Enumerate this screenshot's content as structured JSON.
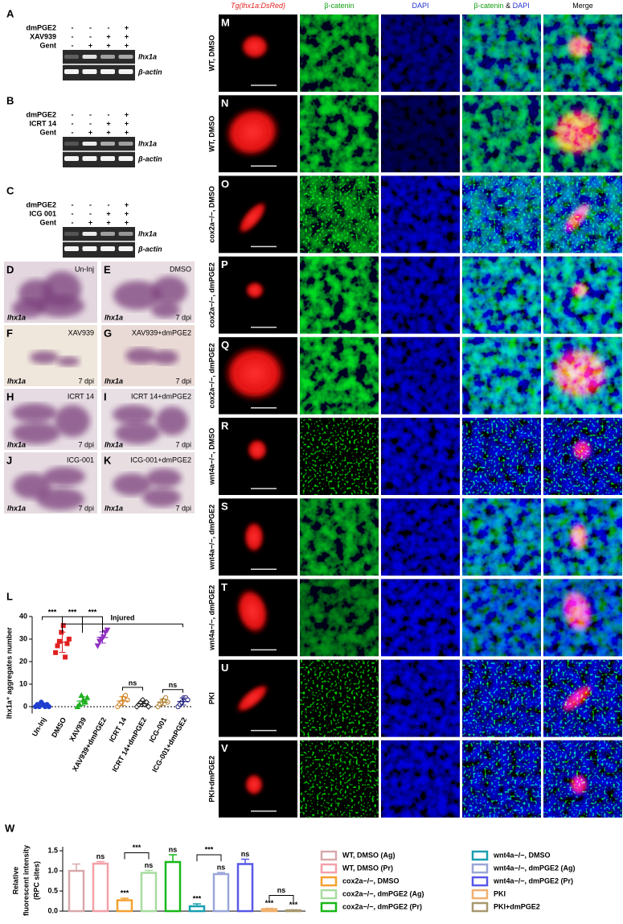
{
  "gels": [
    {
      "letter": "A",
      "rows": [
        {
          "name": "dmPGE2",
          "signs": [
            "-",
            "-",
            "-",
            "+"
          ]
        },
        {
          "name": "XAV939",
          "signs": [
            "-",
            "-",
            "+",
            "+"
          ]
        },
        {
          "name": "Gent",
          "signs": [
            "-",
            "+",
            "+",
            "+"
          ]
        }
      ],
      "bands": [
        "lhx1a",
        "β-actin"
      ]
    },
    {
      "letter": "B",
      "rows": [
        {
          "name": "dmPGE2",
          "signs": [
            "-",
            "-",
            "-",
            "+"
          ]
        },
        {
          "name": "ICRT 14",
          "signs": [
            "-",
            "-",
            "+",
            "+"
          ]
        },
        {
          "name": "Gent",
          "signs": [
            "-",
            "+",
            "+",
            "+"
          ]
        }
      ],
      "bands": [
        "lhx1a",
        "β-actin"
      ]
    },
    {
      "letter": "C",
      "rows": [
        {
          "name": "dmPGE2",
          "signs": [
            "-",
            "-",
            "-",
            "+"
          ]
        },
        {
          "name": "ICG 001",
          "signs": [
            "-",
            "-",
            "+",
            "+"
          ]
        },
        {
          "name": "Gent",
          "signs": [
            "-",
            "+",
            "+",
            "+"
          ]
        }
      ],
      "bands": [
        "lhx1a",
        "β-actin"
      ]
    }
  ],
  "ish": [
    {
      "letter": "D",
      "label": "Un-Inj",
      "gene": "lhx1a"
    },
    {
      "letter": "E",
      "label": "DMSO",
      "gene": "lhx1a",
      "time": "7 dpi"
    },
    {
      "letter": "F",
      "label": "XAV939",
      "gene": "lhx1a",
      "time": "7 dpi"
    },
    {
      "letter": "G",
      "label": "XAV939+dmPGE2",
      "gene": "lhx1a",
      "time": "7 dpi"
    },
    {
      "letter": "H",
      "label": "ICRT 14",
      "gene": "lhx1a",
      "time": "7 dpi"
    },
    {
      "letter": "I",
      "label": "ICRT 14+dmPGE2",
      "gene": "lhx1a",
      "time": "7 dpi"
    },
    {
      "letter": "J",
      "label": "ICG-001",
      "gene": "lhx1a",
      "time": "7 dpi"
    },
    {
      "letter": "K",
      "label": "ICG-001+dmPGE2",
      "gene": "lhx1a",
      "time": "7 dpi"
    }
  ],
  "imaging": {
    "columns": [
      [
        {
          "text": "Tg(lhx1a:DsRed)",
          "color": "#e02020"
        }
      ],
      [
        {
          "text": "β-catenin",
          "color": "#10a010"
        }
      ],
      [
        {
          "text": "DAPI",
          "color": "#2030d0"
        }
      ],
      [
        {
          "text": "β-catenin",
          "color": "#10a010"
        },
        {
          "text": "&",
          "color": "#000000"
        },
        {
          "text": "DAPI",
          "color": "#2030d0"
        }
      ],
      [
        {
          "text": "Merge",
          "color": "#000000"
        }
      ]
    ],
    "rows": [
      {
        "letter": "M",
        "label": "WT, DMSO"
      },
      {
        "letter": "N",
        "label": "WT, DMSO"
      },
      {
        "letter": "O",
        "label": "cox2a−/−, DMSO"
      },
      {
        "letter": "P",
        "label": "cox2a−/−, dmPGE2"
      },
      {
        "letter": "Q",
        "label": "cox2a−/−, dmPGE2"
      },
      {
        "letter": "R",
        "label": "wnt4a−/−, DMSO"
      },
      {
        "letter": "S",
        "label": "wnt4a−/−, dmPGE2"
      },
      {
        "letter": "T",
        "label": "wnt4a−/−, dmPGE2"
      },
      {
        "letter": "U",
        "label": "PKI"
      },
      {
        "letter": "V",
        "label": "PKI+dmPGE2"
      }
    ]
  },
  "chart_data": [
    {
      "letter": "L",
      "type": "dot",
      "ylabel": "lhx1a⁺ aggregates number",
      "categories": [
        "Un-Inj",
        "DMSO",
        "XAV939",
        "XAV939+dmPGE2",
        "ICRT 14",
        "ICRT 14+dmPGE2",
        "ICG-001",
        "ICG-001+dmPGE2"
      ],
      "points": [
        [
          0,
          1,
          0,
          2,
          1,
          0,
          1,
          0
        ],
        [
          24,
          27,
          29,
          33,
          36,
          22,
          28,
          30
        ],
        [
          0,
          1,
          5,
          3,
          2,
          4
        ],
        [
          27,
          29,
          30,
          31,
          33,
          34
        ],
        [
          0,
          1,
          2,
          4,
          5,
          3
        ],
        [
          0,
          1,
          2,
          3,
          1,
          2,
          0
        ],
        [
          0,
          1,
          2,
          3,
          4,
          2
        ],
        [
          0,
          1,
          2,
          4,
          4,
          3
        ]
      ],
      "means": [
        0.6,
        28.6,
        2.5,
        30.7,
        2.5,
        1.3,
        2,
        2.3
      ],
      "errors": [
        0.7,
        4.5,
        1.9,
        2.5,
        1.9,
        1.1,
        1.4,
        1.6
      ],
      "colors": [
        "#1f3fd0",
        "#e02020",
        "#20b020",
        "#9030c0",
        "#d08020",
        "#202020",
        "#b08030",
        "#202080"
      ],
      "markers": [
        "circle",
        "square",
        "triangle",
        "triangle-down",
        "circle-open",
        "diamond-open",
        "circle-open",
        "circle-open"
      ],
      "ylim": [
        -3,
        40
      ],
      "yticks": [
        0,
        10,
        20,
        30,
        40
      ],
      "group_label": "Injured",
      "brackets": [
        {
          "from": 0,
          "to": 1,
          "label": "***"
        },
        {
          "from": 1,
          "to": 2,
          "label": "***"
        },
        {
          "from": 2,
          "to": 3,
          "label": "***"
        },
        {
          "from": 4,
          "to": 5,
          "label": "ns"
        },
        {
          "from": 6,
          "to": 7,
          "label": "ns"
        }
      ]
    },
    {
      "letter": "W",
      "type": "bar",
      "ylabel": [
        "Relative",
        "fluorescent intensity",
        "(RPC sites)"
      ],
      "categories": [
        "WT, DMSO (Ag)",
        "WT, DMSO (Pr)",
        "cox2a−/−, DMSO",
        "cox2a−/−, dmPGE2 (Ag)",
        "cox2a−/−, dmPGE2 (Pr)",
        "wnt4a−/−, DMSO",
        "wnt4a−/−, dmPGE2 (Ag)",
        "wnt4a−/−, dmPGE2 (Pr)",
        "PKI",
        "PKI+dmPGE2"
      ],
      "colors": [
        "#d8a8ac",
        "#f4a0a8",
        "#f5a030",
        "#a8dca0",
        "#18b818",
        "#1aa0b0",
        "#9aa6d8",
        "#5858e8",
        "#f0b070",
        "#a89870"
      ],
      "values": [
        1.0,
        1.18,
        0.27,
        0.95,
        1.22,
        0.12,
        0.92,
        1.17,
        0.05,
        0.02
      ],
      "errors": [
        0.17,
        0.05,
        0.05,
        0.06,
        0.18,
        0.06,
        0.04,
        0.12,
        0.02,
        0.01
      ],
      "bar_labels": [
        null,
        "ns",
        "***",
        "ns",
        "ns",
        "***",
        "ns",
        "ns",
        "***",
        "***"
      ],
      "brackets": [
        {
          "from": 2,
          "to": 3,
          "label": "***"
        },
        {
          "from": 5,
          "to": 6,
          "label": "***"
        },
        {
          "from": 8,
          "to": 9,
          "label": "ns"
        }
      ],
      "ylim": [
        0,
        1.6
      ],
      "yticks": [
        {
          "value": 0,
          "label": "0.0"
        },
        {
          "value": 0.5,
          "label": "0.5"
        },
        {
          "value": 1,
          "label": "1.0"
        },
        {
          "value": 1.5,
          "label": "1.5"
        }
      ]
    }
  ]
}
